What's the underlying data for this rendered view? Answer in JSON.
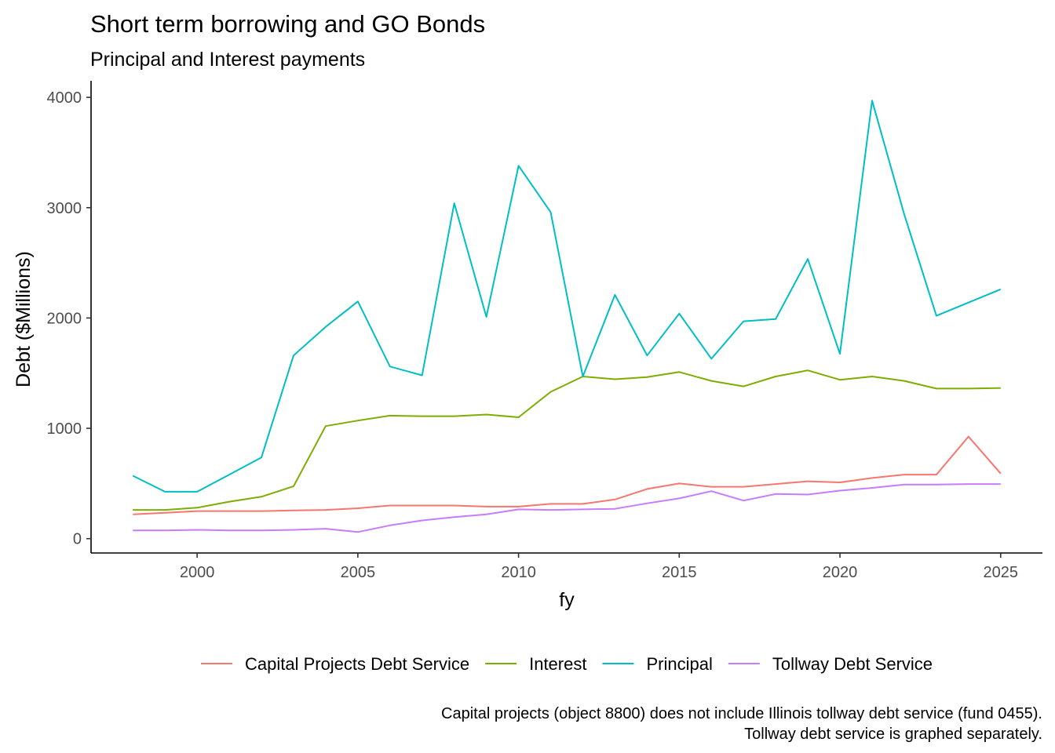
{
  "chart_data": {
    "type": "line",
    "title": "Short term borrowing and GO Bonds",
    "subtitle": "Principal and Interest payments",
    "xlabel": "fy",
    "ylabel": "Debt ($Millions)",
    "xlim": [
      1996.7,
      2026.3
    ],
    "ylim": [
      -130,
      4150
    ],
    "x_ticks": [
      2000,
      2005,
      2010,
      2015,
      2020,
      2025
    ],
    "y_ticks": [
      0,
      1000,
      2000,
      3000,
      4000
    ],
    "grid": false,
    "legend_position": "bottom",
    "x": [
      1998,
      1999,
      2000,
      2001,
      2002,
      2003,
      2004,
      2005,
      2006,
      2007,
      2008,
      2009,
      2010,
      2011,
      2012,
      2013,
      2014,
      2015,
      2016,
      2017,
      2018,
      2019,
      2020,
      2021,
      2022,
      2023,
      2024,
      2025
    ],
    "series": [
      {
        "name": "Capital Projects Debt Service",
        "color": "#F8766D",
        "values": [
          220,
          235,
          250,
          250,
          250,
          255,
          260,
          275,
          300,
          300,
          300,
          290,
          290,
          315,
          315,
          355,
          450,
          500,
          470,
          470,
          495,
          520,
          510,
          550,
          580,
          580,
          925,
          590
        ]
      },
      {
        "name": "Interest",
        "color": "#7CAE00",
        "values": [
          260,
          260,
          280,
          335,
          380,
          475,
          1020,
          1070,
          1115,
          1110,
          1110,
          1125,
          1100,
          1330,
          1470,
          1445,
          1465,
          1510,
          1430,
          1380,
          1470,
          1525,
          1440,
          1470,
          1430,
          1360,
          1360,
          1365
        ]
      },
      {
        "name": "Principal",
        "color": "#00BFC4",
        "values": [
          570,
          425,
          425,
          580,
          735,
          1660,
          1920,
          2150,
          1560,
          1480,
          3040,
          2010,
          3380,
          2960,
          1470,
          2210,
          1660,
          2040,
          1630,
          1970,
          1990,
          2535,
          1675,
          3970,
          2940,
          2020,
          2140,
          2260
        ]
      },
      {
        "name": "Tollway Debt Service",
        "color": "#C77CFF",
        "values": [
          75,
          75,
          80,
          75,
          75,
          80,
          90,
          60,
          120,
          165,
          195,
          220,
          265,
          260,
          265,
          270,
          320,
          365,
          430,
          345,
          405,
          400,
          435,
          460,
          490,
          490,
          495,
          495
        ]
      }
    ],
    "caption": [
      "Capital projects (object 8800) does not include Illinois tollway debt service (fund 0455).",
      "Tollway debt service is graphed separately."
    ]
  }
}
